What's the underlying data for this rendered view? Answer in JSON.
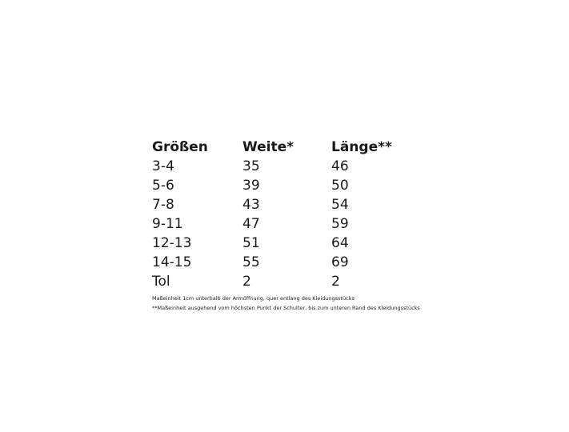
{
  "table": {
    "header": [
      "Größen",
      "Weite*",
      "Länge**"
    ],
    "rows": [
      [
        "3-4",
        35,
        46
      ],
      [
        "5-6",
        39,
        50
      ],
      [
        "7-8",
        43,
        54
      ],
      [
        "9-11",
        47,
        59
      ],
      [
        "12-13",
        51,
        64
      ],
      [
        "14-15",
        55,
        69
      ],
      [
        "Tol",
        2,
        2
      ]
    ]
  },
  "footnotes": [
    "Maßeinheit 1cm unterhalb der Armöffnung, quer entlang des Kleidungsstücks",
    "**Maßeinheit ausgehend vom höchsten Punkt der Schulter, bis zum unteren Rand des Kleidungsstücks"
  ]
}
